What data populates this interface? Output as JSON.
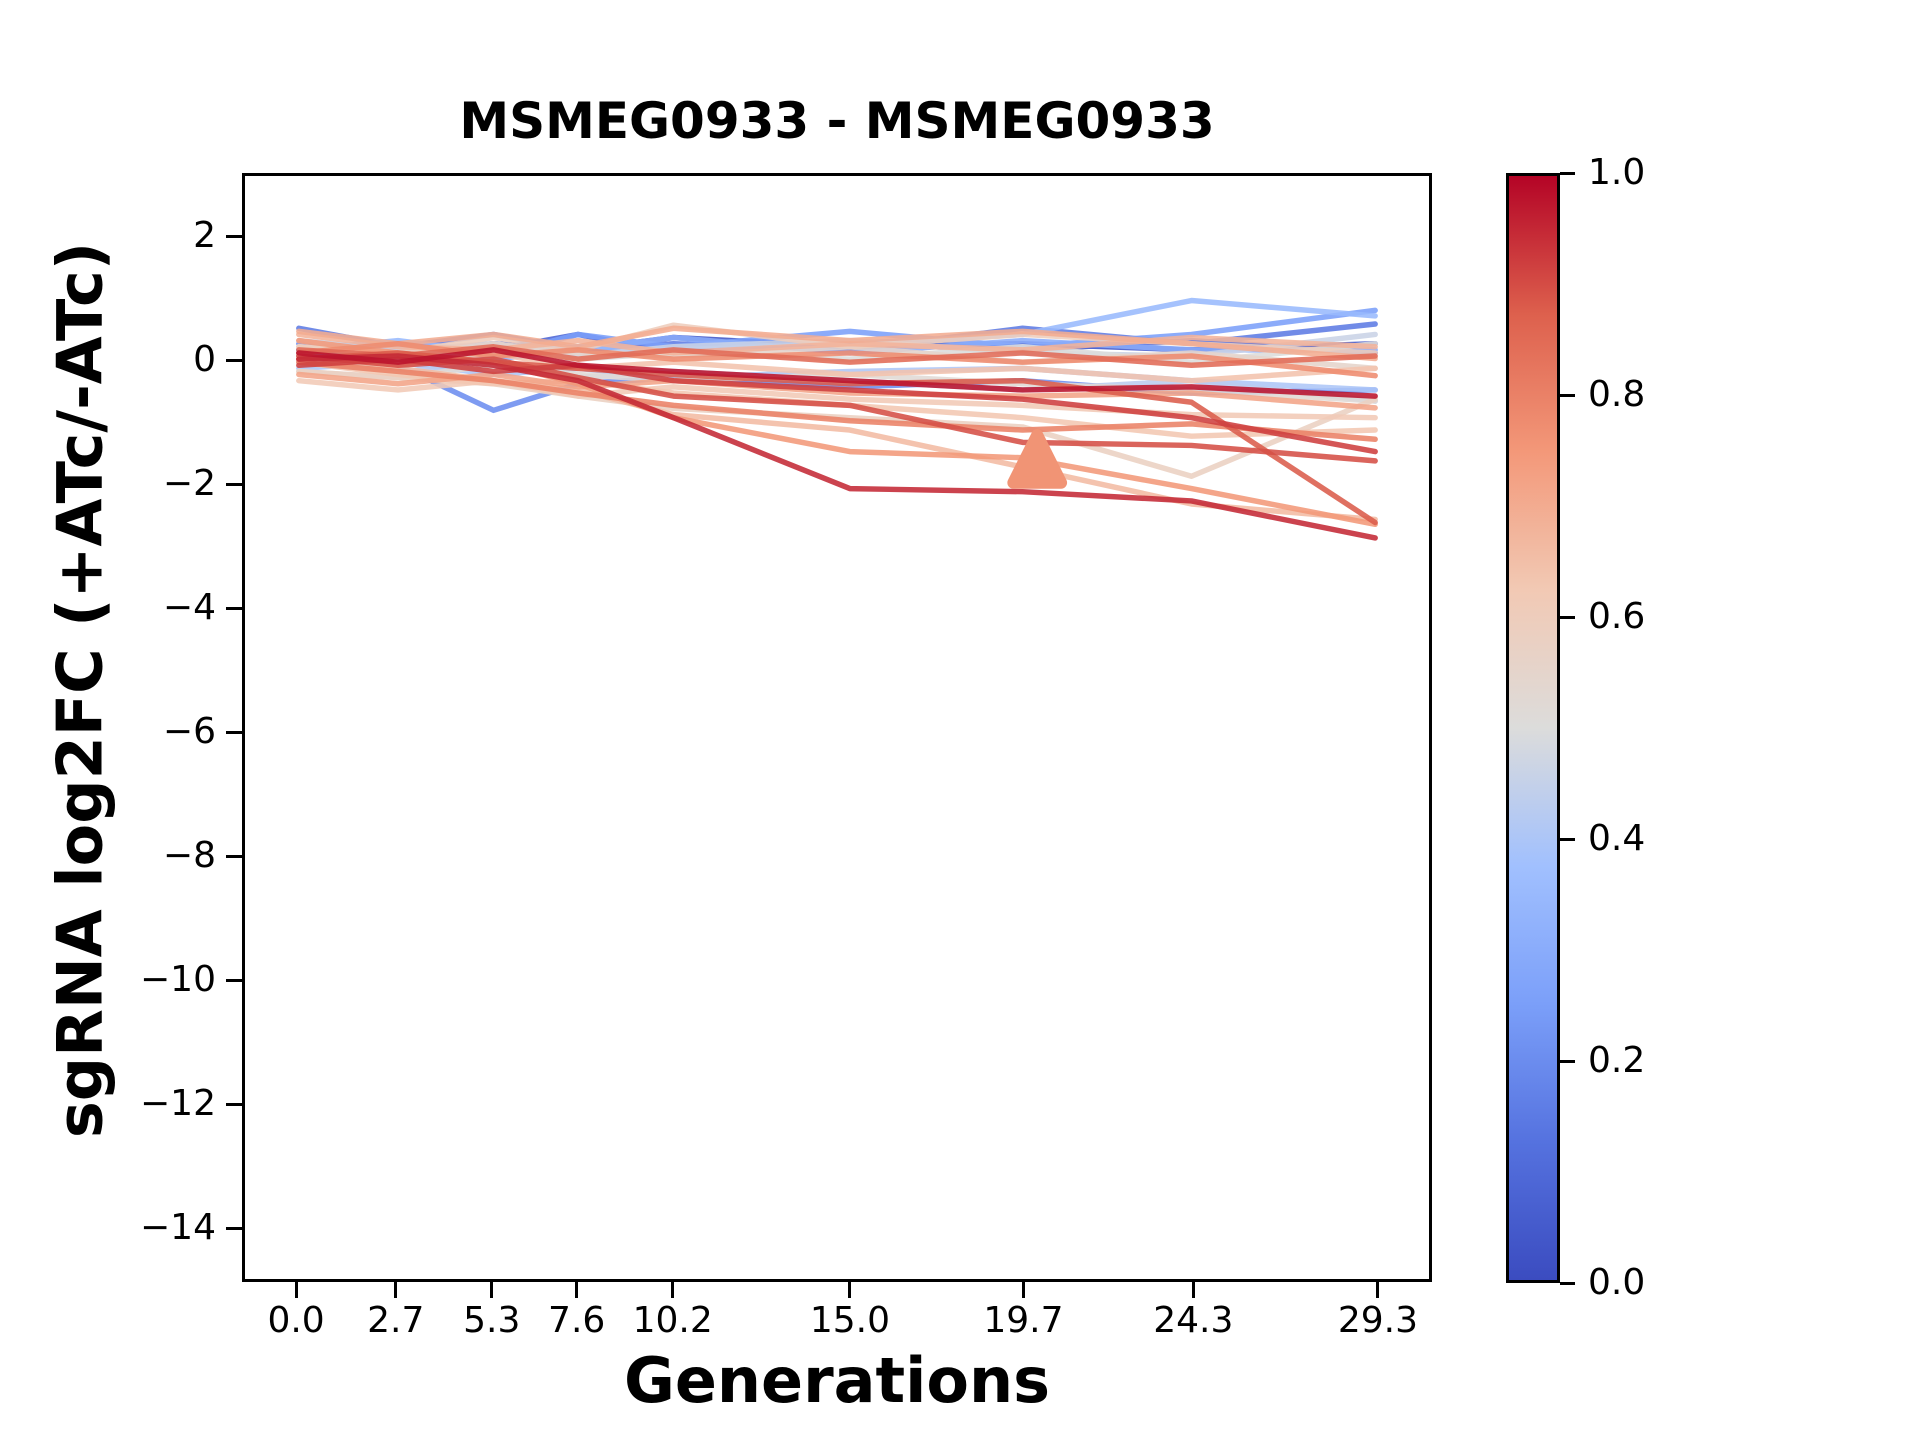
{
  "title": "MSMEG0933 - MSMEG0933",
  "xlabel": "Generations",
  "ylabel": "sgRNA log2FC (+ATc/-ATc)",
  "colors": {
    "background": "#ffffff",
    "spine": "#000000",
    "tick": "#000000"
  },
  "chart_data": {
    "type": "line",
    "x": [
      0.0,
      2.7,
      5.3,
      7.6,
      10.2,
      15.0,
      19.7,
      24.3,
      29.3
    ],
    "xtick_labels": [
      "0.0",
      "2.7",
      "5.3",
      "7.6",
      "10.2",
      "15.0",
      "19.7",
      "24.3",
      "29.3"
    ],
    "yticks": [
      2,
      0,
      -2,
      -4,
      -6,
      -8,
      -10,
      -12,
      -14
    ],
    "ytick_labels": [
      "2",
      "0",
      "−2",
      "−4",
      "−6",
      "−8",
      "−10",
      "−12",
      "−14"
    ],
    "xlim": [
      -1.465,
      30.765
    ],
    "ylim": [
      -14.87,
      3.02
    ],
    "grid": false,
    "line_width": 5.5,
    "line_opacity": 0.88,
    "series": [
      {
        "color_value": 0.03,
        "y": [
          0.2,
          0.15,
          0.3,
          0.2,
          0.4,
          0.25,
          0.3,
          0.2,
          0.3
        ]
      },
      {
        "color_value": 0.08,
        "y": [
          0.1,
          0.05,
          0.2,
          0.45,
          0.15,
          0.3,
          0.2,
          0.35,
          0.15
        ]
      },
      {
        "color_value": 0.15,
        "y": [
          0.55,
          0.25,
          0.45,
          0.2,
          0.3,
          0.2,
          0.55,
          0.3,
          0.62
        ]
      },
      {
        "color_value": 0.2,
        "y": [
          0.3,
          -0.05,
          -0.78,
          -0.35,
          -0.25,
          -0.4,
          -0.3,
          -0.5,
          -0.45
        ]
      },
      {
        "color_value": 0.25,
        "y": [
          0.15,
          0.25,
          0.1,
          0.45,
          0.25,
          0.5,
          0.25,
          0.45,
          0.84
        ]
      },
      {
        "color_value": 0.3,
        "y": [
          0.0,
          0.15,
          0.05,
          0.2,
          0.4,
          0.15,
          0.35,
          0.2,
          0.2
        ]
      },
      {
        "color_value": 0.35,
        "y": [
          0.2,
          0.35,
          0.15,
          0.25,
          0.2,
          0.3,
          0.45,
          1.0,
          0.75
        ]
      },
      {
        "color_value": 0.4,
        "y": [
          -0.1,
          0.0,
          -0.2,
          -0.1,
          -0.25,
          -0.15,
          -0.1,
          -0.3,
          -0.45
        ]
      },
      {
        "color_value": 0.43,
        "y": [
          0.0,
          -0.15,
          -0.05,
          -0.25,
          -0.15,
          -0.3,
          -0.45,
          -0.3,
          -0.63
        ]
      },
      {
        "color_value": 0.46,
        "y": [
          0.35,
          0.2,
          0.3,
          0.1,
          0.25,
          0.35,
          0.15,
          0.1,
          0.45
        ]
      },
      {
        "color_value": 0.5,
        "y": [
          0.1,
          0.0,
          0.2,
          0.05,
          0.15,
          0.05,
          0.25,
          0.0,
          0.3
        ]
      },
      {
        "color_value": 0.52,
        "y": [
          -0.15,
          -0.25,
          -0.05,
          -0.2,
          -0.3,
          -0.2,
          -0.35,
          -0.45,
          -0.63
        ]
      },
      {
        "color_value": 0.55,
        "y": [
          0.25,
          0.1,
          0.3,
          0.15,
          0.1,
          0.25,
          0.0,
          0.15,
          -0.1
        ]
      },
      {
        "color_value": 0.58,
        "y": [
          -0.15,
          -0.25,
          -0.35,
          -0.55,
          -0.75,
          -0.9,
          -1.05,
          -1.85,
          -0.6
        ]
      },
      {
        "color_value": 0.6,
        "y": [
          0.25,
          0.15,
          0.4,
          0.2,
          0.6,
          0.25,
          0.45,
          0.3,
          0.15
        ]
      },
      {
        "color_value": 0.62,
        "y": [
          -0.3,
          -0.45,
          -0.3,
          -0.55,
          -0.4,
          -0.6,
          -0.7,
          -0.85,
          -0.9
        ]
      },
      {
        "color_value": 0.63,
        "y": [
          0.0,
          -0.2,
          -0.35,
          -0.3,
          -0.5,
          -0.7,
          -0.9,
          -1.2,
          -1.1
        ]
      },
      {
        "color_value": 0.64,
        "y": [
          0.1,
          -0.05,
          0.15,
          -0.1,
          0.0,
          -0.2,
          -0.1,
          -0.3,
          -0.1
        ]
      },
      {
        "color_value": 0.66,
        "y": [
          0.05,
          -0.1,
          -0.3,
          -0.45,
          -0.85,
          -1.1,
          -1.7,
          -2.3,
          -2.55
        ]
      },
      {
        "color_value": 0.68,
        "y": [
          0.45,
          0.25,
          0.2,
          0.35,
          0.15,
          0.3,
          0.2,
          0.4,
          0.25
        ]
      },
      {
        "color_value": 0.7,
        "y": [
          0.5,
          0.3,
          0.45,
          0.25,
          0.55,
          0.35,
          0.5,
          0.3,
          0.06
        ]
      },
      {
        "color_value": 0.72,
        "y": [
          -0.2,
          -0.35,
          -0.2,
          -0.4,
          -0.3,
          -0.5,
          -0.55,
          -0.5,
          -0.74
        ]
      },
      {
        "color_value": 0.75,
        "y": [
          0.35,
          0.15,
          0.0,
          -0.35,
          -0.9,
          -1.45,
          -1.55,
          -2.05,
          -2.63
        ]
      },
      {
        "color_value": 0.78,
        "y": [
          0.15,
          0.3,
          0.1,
          0.2,
          0.05,
          0.15,
          0.0,
          0.1,
          -0.22
        ]
      },
      {
        "color_value": 0.8,
        "y": [
          0.0,
          -0.15,
          -0.3,
          -0.5,
          -0.7,
          -0.95,
          -1.1,
          -1.0,
          -1.25
        ]
      },
      {
        "color_value": 0.85,
        "y": [
          0.2,
          0.1,
          0.25,
          0.05,
          0.2,
          0.0,
          0.15,
          -0.05,
          0.1
        ]
      },
      {
        "color_value": 0.88,
        "y": [
          0.05,
          0.15,
          0.0,
          -0.1,
          -0.2,
          -0.35,
          -0.3,
          -0.65,
          -2.6
        ]
      },
      {
        "color_value": 0.9,
        "y": [
          0.1,
          -0.05,
          0.05,
          -0.25,
          -0.55,
          -0.7,
          -1.3,
          -1.35,
          -1.6
        ]
      },
      {
        "color_value": 0.92,
        "y": [
          -0.05,
          0.05,
          -0.15,
          -0.05,
          -0.3,
          -0.45,
          -0.6,
          -0.9,
          -1.45
        ]
      },
      {
        "color_value": 0.95,
        "y": [
          0.05,
          0.1,
          -0.05,
          -0.3,
          -0.9,
          -2.05,
          -2.1,
          -2.25,
          -2.85
        ]
      },
      {
        "color_value": 0.98,
        "y": [
          0.15,
          0.0,
          0.2,
          -0.05,
          -0.15,
          -0.3,
          -0.45,
          -0.4,
          -0.55
        ]
      }
    ],
    "marker": {
      "shape": "triangle-up",
      "x": 20.1,
      "y": -1.6,
      "color_value": 0.76
    },
    "colorbar": {
      "tick_values": [
        1.0,
        0.8,
        0.6,
        0.4,
        0.2,
        0.0
      ],
      "tick_labels": [
        "1.0",
        "0.8",
        "0.6",
        "0.4",
        "0.2",
        "0.0"
      ],
      "colormap": "coolwarm",
      "anchors": [
        [
          0.0,
          "#3b4cc0"
        ],
        [
          0.125,
          "#5572df"
        ],
        [
          0.25,
          "#7b9ff9"
        ],
        [
          0.375,
          "#a1c0fe"
        ],
        [
          0.5,
          "#dcdcdb"
        ],
        [
          0.625,
          "#f2c9b4"
        ],
        [
          0.75,
          "#f39879"
        ],
        [
          0.875,
          "#dd604d"
        ],
        [
          1.0,
          "#b40426"
        ]
      ]
    }
  }
}
